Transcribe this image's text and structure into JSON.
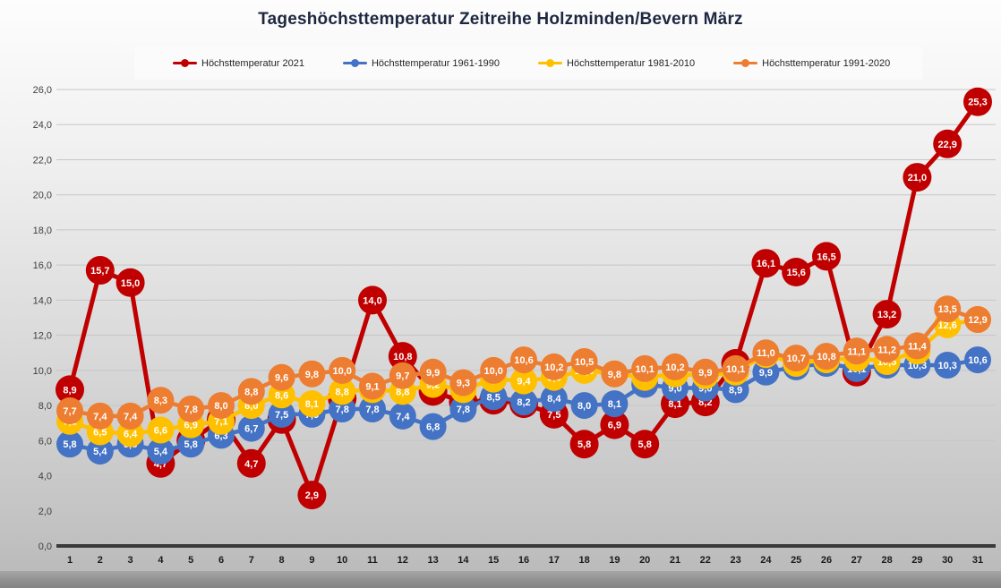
{
  "title": "Tageshöchsttemperatur Zeitreihe Holzminden/Bevern März",
  "colors": {
    "series_2021": "#C00000",
    "series_1961_1990": "#4472C4",
    "series_1981_2010": "#FFC000",
    "series_1991_2020": "#ED7D31",
    "gridline": "#c6c6c6",
    "axis_line": "#3a3a3a",
    "legend_background": "#fbfbfb",
    "title_text": "#1d2740"
  },
  "legend": [
    {
      "label": "Höchsttemperatur 2021",
      "color": "#C00000"
    },
    {
      "label": "Höchsttemperatur 1961-1990",
      "color": "#4472C4"
    },
    {
      "label": "Höchsttemperatur 1981-2010",
      "color": "#FFC000"
    },
    {
      "label": "Höchsttemperatur 1991-2020",
      "color": "#ED7D31"
    }
  ],
  "chart_data": {
    "type": "line",
    "title": "Tageshöchsttemperatur Zeitreihe Holzminden/Bevern März",
    "xlabel": "",
    "ylabel": "",
    "ylim": [
      0,
      26
    ],
    "grid": true,
    "legend_position": "top",
    "decimal_separator": ",",
    "y_ticks": [
      "0,0",
      "2,0",
      "4,0",
      "6,0",
      "8,0",
      "10,0",
      "12,0",
      "14,0",
      "16,0",
      "18,0",
      "20,0",
      "22,0",
      "24,0",
      "26,0"
    ],
    "categories": [
      1,
      2,
      3,
      4,
      5,
      6,
      7,
      8,
      9,
      10,
      11,
      12,
      13,
      14,
      15,
      16,
      17,
      18,
      19,
      20,
      21,
      22,
      23,
      24,
      25,
      26,
      27,
      28,
      29,
      30,
      31
    ],
    "series": [
      {
        "name": "Höchsttemperatur 2021",
        "color": "#C00000",
        "marker_radius": 16,
        "line_width": 5,
        "values": [
          8.9,
          15.7,
          15.0,
          4.7,
          6.0,
          7.2,
          4.7,
          7.2,
          2.9,
          8.4,
          14.0,
          10.8,
          8.8,
          8.2,
          8.3,
          8.1,
          7.5,
          5.8,
          6.9,
          5.8,
          8.1,
          8.2,
          10.4,
          16.1,
          15.6,
          16.5,
          9.9,
          13.2,
          21.0,
          22.9,
          25.3
        ]
      },
      {
        "name": "Höchsttemperatur 1961-1990",
        "color": "#4472C4",
        "marker_radius": 15,
        "line_width": 4.5,
        "values": [
          5.8,
          5.4,
          5.8,
          5.4,
          5.8,
          6.3,
          6.7,
          7.5,
          7.5,
          7.8,
          7.8,
          7.4,
          6.8,
          7.8,
          8.5,
          8.2,
          8.4,
          8.0,
          8.1,
          9.2,
          9.0,
          9.0,
          8.9,
          9.9,
          10.2,
          10.4,
          10.1,
          10.3,
          10.3,
          10.3,
          10.6
        ]
      },
      {
        "name": "Höchsttemperatur 1981-2010",
        "color": "#FFC000",
        "marker_radius": 15,
        "line_width": 4.5,
        "values": [
          7.1,
          6.5,
          6.4,
          6.6,
          6.9,
          7.1,
          8.0,
          8.6,
          8.1,
          8.8,
          8.9,
          8.8,
          9.2,
          8.9,
          9.5,
          9.4,
          9.6,
          10.0,
          9.8,
          9.6,
          9.8,
          9.7,
          9.9,
          10.9,
          10.4,
          10.6,
          10.7,
          10.5,
          11.1,
          12.6,
          12.9
        ]
      },
      {
        "name": "Höchsttemperatur 1991-2020",
        "color": "#ED7D31",
        "marker_radius": 15,
        "line_width": 4.5,
        "values": [
          7.7,
          7.4,
          7.4,
          8.3,
          7.8,
          8.0,
          8.8,
          9.6,
          9.8,
          10.0,
          9.1,
          9.7,
          9.9,
          9.3,
          10.0,
          10.6,
          10.2,
          10.5,
          9.8,
          10.1,
          10.2,
          9.9,
          10.1,
          11.0,
          10.7,
          10.8,
          11.1,
          11.2,
          11.4,
          13.5,
          12.9
        ]
      }
    ]
  }
}
